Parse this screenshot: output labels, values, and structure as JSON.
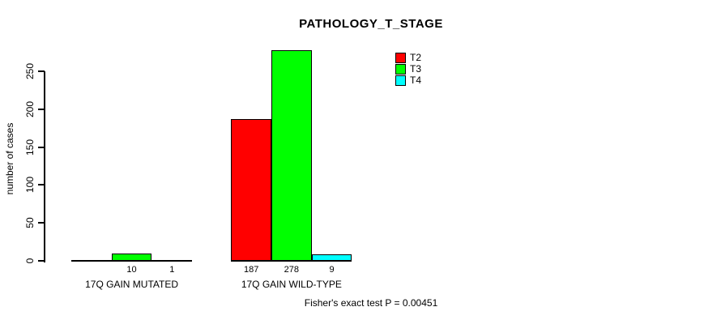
{
  "title": "PATHOLOGY_T_STAGE",
  "y_axis": {
    "label": "number of cases",
    "ticks": [
      0,
      50,
      100,
      150,
      200,
      250
    ]
  },
  "footnote": "Fisher's exact test P = 0.00451",
  "chart_data": {
    "type": "bar",
    "title": "PATHOLOGY_T_STAGE",
    "xlabel": "",
    "ylabel": "number of cases",
    "categories": [
      "17Q GAIN MUTATED",
      "17Q GAIN WILD-TYPE"
    ],
    "series": [
      {
        "name": "T2",
        "color": "#ff0000",
        "values": [
          0,
          187
        ]
      },
      {
        "name": "T3",
        "color": "#00ff00",
        "values": [
          10,
          278
        ]
      },
      {
        "name": "T4",
        "color": "#00ffff",
        "values": [
          1,
          9
        ]
      }
    ],
    "bar_labels": [
      [
        "",
        "10",
        "1"
      ],
      [
        "187",
        "278",
        "9"
      ]
    ],
    "yticks": [
      0,
      50,
      100,
      150,
      200,
      250
    ],
    "ylim": [
      0,
      278
    ],
    "grid": false,
    "legend_position": "top-right",
    "legend_entries": [
      "T2",
      "T3",
      "T4"
    ],
    "annotation": "Fisher's exact test P = 0.00451"
  }
}
